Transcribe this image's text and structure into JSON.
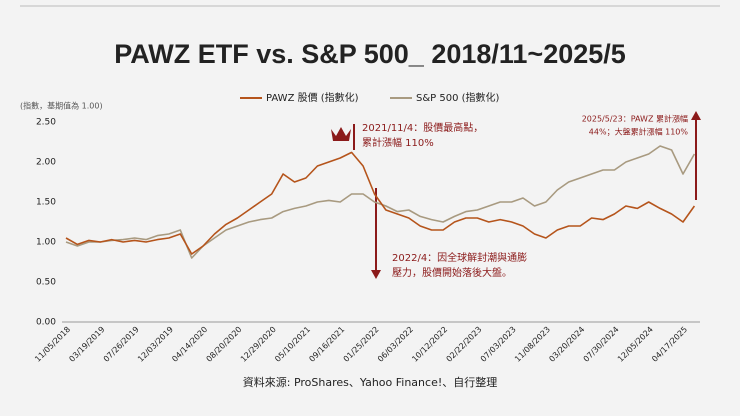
{
  "chart_data": {
    "type": "line",
    "title": "PAWZ ETF vs. S&P 500_ 2018/11~2025/5",
    "y_axis_label": "(指數，基期值為 1.00)",
    "source": "資料來源: ProShares、Yahoo Finance!、自行整理",
    "categories": [
      "11/05/2018",
      null,
      null,
      "03/19/2019",
      null,
      null,
      "07/26/2019",
      null,
      null,
      "12/03/2019",
      null,
      null,
      "04/14/2020",
      null,
      null,
      "08/20/2020",
      null,
      null,
      "12/29/2020",
      null,
      null,
      "05/10/2021",
      null,
      null,
      "09/16/2021",
      null,
      null,
      "01/25/2022",
      null,
      null,
      "06/03/2022",
      null,
      null,
      "10/12/2022",
      null,
      null,
      "02/22/2023",
      null,
      null,
      "07/03/2023",
      null,
      null,
      "11/08/2023",
      null,
      null,
      "03/20/2024",
      null,
      null,
      "07/30/2024",
      null,
      null,
      "12/05/2024",
      null,
      null,
      "04/17/2025",
      null
    ],
    "series": [
      {
        "name": "PAWZ  股價 (指數化)",
        "color": "#b5541b",
        "values": [
          1.05,
          0.97,
          1.02,
          1.0,
          1.03,
          1.0,
          1.02,
          1.0,
          1.03,
          1.05,
          1.1,
          0.85,
          0.95,
          1.1,
          1.22,
          1.3,
          1.4,
          1.5,
          1.6,
          1.85,
          1.75,
          1.8,
          1.95,
          2.0,
          2.05,
          2.12,
          1.95,
          1.6,
          1.4,
          1.35,
          1.3,
          1.2,
          1.15,
          1.15,
          1.25,
          1.3,
          1.3,
          1.25,
          1.28,
          1.25,
          1.2,
          1.1,
          1.05,
          1.15,
          1.2,
          1.2,
          1.3,
          1.28,
          1.35,
          1.45,
          1.42,
          1.5,
          1.42,
          1.35,
          1.25,
          1.45
        ]
      },
      {
        "name": "S&P 500 (指數化)",
        "color": "#a89a80",
        "values": [
          1.0,
          0.95,
          1.0,
          1.0,
          1.02,
          1.03,
          1.05,
          1.03,
          1.08,
          1.1,
          1.15,
          0.8,
          0.95,
          1.05,
          1.15,
          1.2,
          1.25,
          1.28,
          1.3,
          1.38,
          1.42,
          1.45,
          1.5,
          1.52,
          1.5,
          1.6,
          1.6,
          1.5,
          1.45,
          1.38,
          1.4,
          1.32,
          1.28,
          1.25,
          1.32,
          1.38,
          1.4,
          1.45,
          1.5,
          1.5,
          1.55,
          1.45,
          1.5,
          1.65,
          1.75,
          1.8,
          1.85,
          1.9,
          1.9,
          2.0,
          2.05,
          2.1,
          2.2,
          2.15,
          1.85,
          2.1
        ]
      }
    ],
    "ylim": [
      0,
      2.5
    ],
    "yticks": [
      {
        "value": 0,
        "label": "0.00"
      },
      {
        "value": 0.5,
        "label": "0.50"
      },
      {
        "value": 1,
        "label": "1.00"
      },
      {
        "value": 1.5,
        "label": "1.50"
      },
      {
        "value": 2,
        "label": "2.00"
      },
      {
        "value": 2.5,
        "label": "2.50"
      }
    ],
    "grid": false,
    "annotations": [
      {
        "lines": [
          "2021/11/4：股價最高點，",
          "累計漲幅 110%"
        ],
        "color": "#8b1a1a"
      },
      {
        "lines": [
          "2022/4：因全球解封潮與通膨",
          "壓力，股價開始落後大盤。"
        ],
        "color": "#8b1a1a"
      },
      {
        "lines": [
          "2025/5/23：PAWZ 累計漲幅",
          "44%；大盤累計漲幅 110%"
        ],
        "color": "#8b1a1a"
      }
    ]
  }
}
